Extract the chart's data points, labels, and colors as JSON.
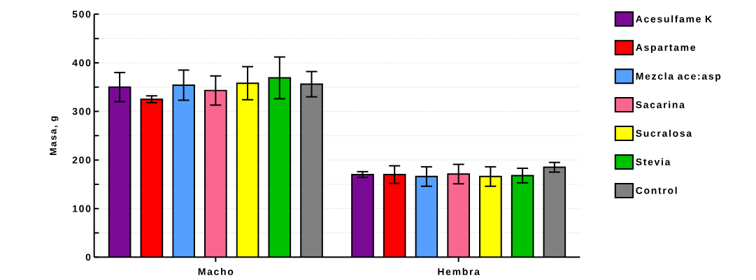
{
  "chart_data": {
    "type": "bar",
    "ylabel": "Masa, g",
    "categories": [
      "Macho",
      "Hembra"
    ],
    "series": [
      {
        "name": "Acesulfame K",
        "color": "#7a0a96",
        "values": [
          350,
          170
        ],
        "errors": [
          30,
          6
        ]
      },
      {
        "name": "Aspartame",
        "color": "#ff0000",
        "values": [
          325,
          170
        ],
        "errors": [
          7,
          18
        ]
      },
      {
        "name": "Mezcla ace:asp",
        "color": "#55a0ff",
        "values": [
          354,
          166
        ],
        "errors": [
          31,
          20
        ]
      },
      {
        "name": "Sacarina",
        "color": "#fb6691",
        "values": [
          343,
          171
        ],
        "errors": [
          30,
          20
        ]
      },
      {
        "name": "Sucralosa",
        "color": "#ffff00",
        "values": [
          358,
          166
        ],
        "errors": [
          34,
          20
        ]
      },
      {
        "name": "Stevia",
        "color": "#00c000",
        "values": [
          369,
          168
        ],
        "errors": [
          43,
          15
        ]
      },
      {
        "name": "Control",
        "color": "#808080",
        "values": [
          356,
          185
        ],
        "errors": [
          26,
          10
        ]
      }
    ],
    "ylim": [
      0,
      500
    ],
    "yticks": [
      0,
      {
        "value": 50,
        "label": null
      },
      100,
      {
        "value": 150,
        "label": null
      },
      200,
      {
        "value": 250,
        "label": null
      },
      300,
      {
        "value": 350,
        "label": null
      },
      400,
      {
        "value": 450,
        "label": null
      },
      500
    ],
    "grid": "y",
    "legend": "right"
  }
}
